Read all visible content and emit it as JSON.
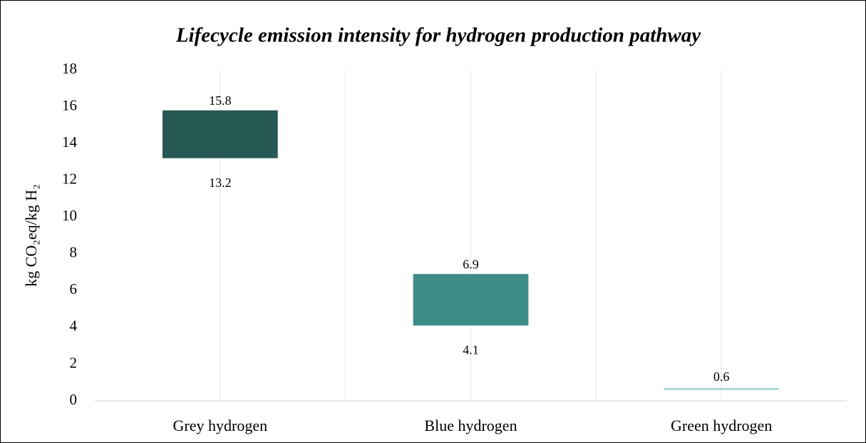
{
  "chart_data": {
    "type": "floating_bar",
    "title": "Lifecycle emission intensity for hydrogen production pathway",
    "ylabel": "kg CO₂eq/kg H₂",
    "categories": [
      "Grey hydrogen",
      "Blue hydrogen",
      "Green hydrogen"
    ],
    "low": [
      13.2,
      4.1,
      0.6
    ],
    "high": [
      15.8,
      6.9,
      0.7
    ],
    "colors": [
      "#265953",
      "#3d8d87",
      "#9fd4d0"
    ],
    "ylim": [
      0,
      18
    ],
    "yticks": [
      0,
      2,
      4,
      6,
      8,
      10,
      12,
      14,
      16,
      18
    ],
    "grid": true
  }
}
